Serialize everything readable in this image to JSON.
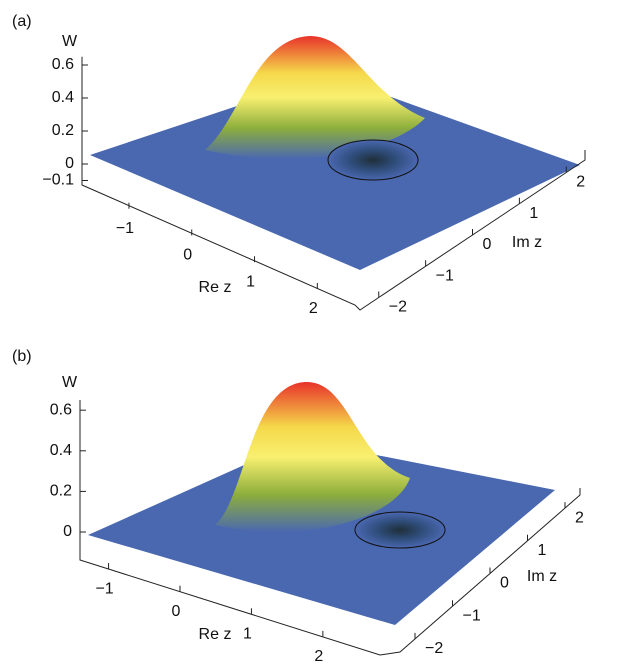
{
  "chart_data": [
    {
      "type": "surface",
      "panel_label": "(a)",
      "zlabel": "W",
      "xlabel": "Re z",
      "ylabel": "Im z",
      "xlim": [
        -1.7,
        2.6
      ],
      "xticks": [
        {
          "value": -1,
          "label": "−1"
        },
        0,
        1,
        2
      ],
      "ylim": [
        -2.4,
        2.4
      ],
      "yticks": [
        {
          "value": -2,
          "label": "−2"
        },
        {
          "value": -1,
          "label": "−1"
        },
        0,
        1,
        2
      ],
      "zlim": [
        -0.12,
        0.65
      ],
      "zticks": [
        {
          "value": -0.1,
          "label": "−0.1"
        },
        0,
        0.2,
        0.4,
        0.6
      ]
    },
    {
      "type": "surface",
      "panel_label": "(b)",
      "zlabel": "W",
      "xlabel": "Re z",
      "ylabel": "Im z",
      "xlim": [
        -1.4,
        2.8
      ],
      "xticks": [
        {
          "value": -1,
          "label": "−1"
        },
        0,
        1,
        2
      ],
      "ylim": [
        -2.4,
        2.4
      ],
      "yticks": [
        {
          "value": -2,
          "label": "−2"
        },
        {
          "value": -1,
          "label": "−1"
        },
        0,
        1,
        2
      ],
      "zlim": [
        -0.05,
        0.65
      ],
      "zticks": [
        0,
        0.2,
        0.4,
        0.6
      ]
    }
  ]
}
